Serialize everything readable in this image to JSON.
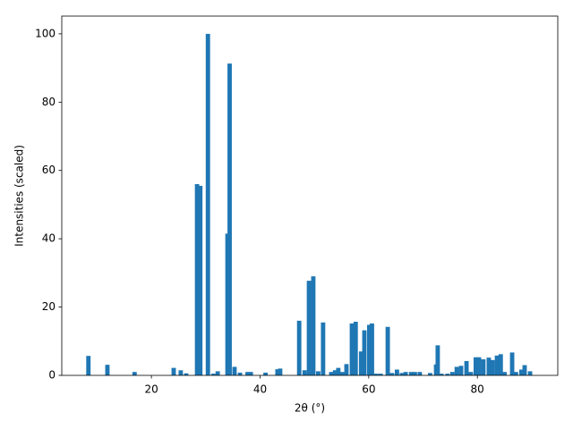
{
  "chart_data": {
    "type": "bar",
    "xlabel": "2θ (°)",
    "ylabel": "Intensities (scaled)",
    "color": "#1f77b4",
    "x": [
      8.4,
      11.9,
      16.9,
      24.1,
      25.4,
      26.4,
      28.4,
      29.0,
      30.4,
      31.4,
      32.2,
      34.0,
      34.4,
      35.3,
      36.3,
      37.7,
      38.3,
      41.0,
      43.2,
      43.7,
      47.2,
      48.2,
      49.0,
      49.8,
      50.7,
      51.6,
      53.1,
      53.8,
      54.4,
      55.1,
      55.9,
      56.9,
      57.6,
      58.6,
      59.2,
      60.1,
      60.6,
      61.4,
      62.2,
      63.5,
      64.3,
      65.2,
      66.1,
      66.8,
      67.8,
      68.5,
      69.4,
      71.3,
      72.4,
      72.7,
      73.4,
      74.5,
      75.4,
      76.2,
      77.0,
      78.0,
      78.8,
      79.7,
      80.3,
      81.1,
      82.1,
      82.8,
      83.6,
      84.3,
      85.0,
      86.4,
      87.1,
      88.1,
      88.7,
      89.7
    ],
    "values": [
      5.7,
      3.1,
      1.0,
      2.2,
      1.5,
      0.6,
      56,
      55.5,
      100,
      0.5,
      1.2,
      41.5,
      91.3,
      2.5,
      0.8,
      1.0,
      1.0,
      0.8,
      1.8,
      2.0,
      16,
      1.5,
      27.7,
      29,
      1.2,
      15.5,
      1.0,
      1.5,
      2.2,
      1.0,
      3.3,
      15.2,
      15.7,
      7,
      13.2,
      14.8,
      15.2,
      0.5,
      0.5,
      14.2,
      0.7,
      1.7,
      0.7,
      1.0,
      1.0,
      1.0,
      1.0,
      0.7,
      3.2,
      8.8,
      0.5,
      0.5,
      1.0,
      2.5,
      2.8,
      4.2,
      1.0,
      5.3,
      5.3,
      4.7,
      5.2,
      4.5,
      5.8,
      6.2,
      1.0,
      6.7,
      1.0,
      1.7,
      3.0,
      1.2
    ],
    "xlim": [
      3.5,
      94.8
    ],
    "xticks": [
      20,
      40,
      60,
      80
    ],
    "ylim": [
      0,
      105.2
    ],
    "yticks": [
      0,
      20,
      40,
      60,
      80,
      100
    ]
  }
}
